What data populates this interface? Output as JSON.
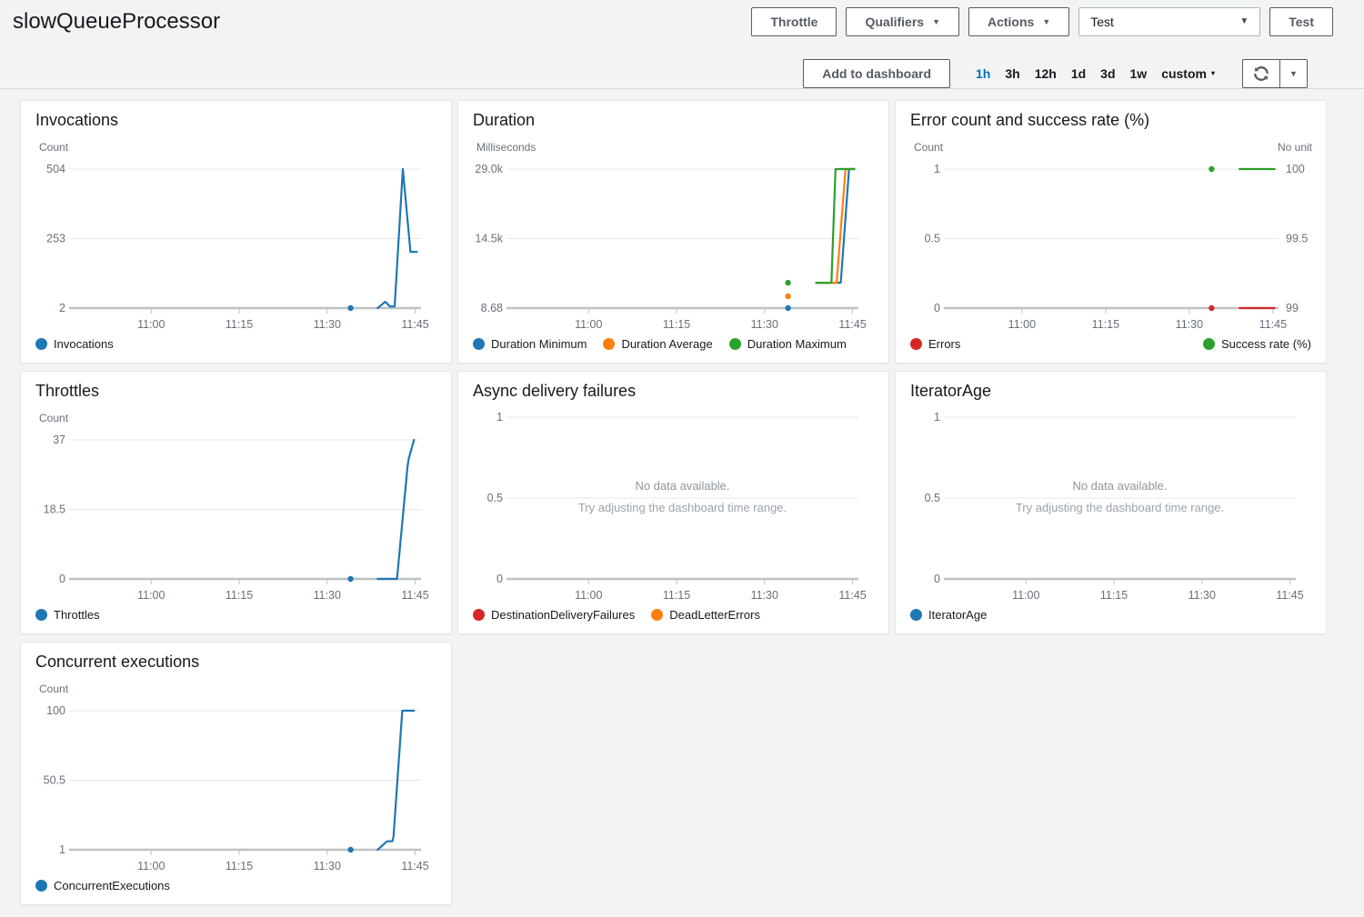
{
  "header": {
    "title": "slowQueueProcessor",
    "throttle_label": "Throttle",
    "qualifiers_label": "Qualifiers",
    "actions_label": "Actions",
    "test_select_value": "Test",
    "test_button_label": "Test"
  },
  "toolbar": {
    "add_to_dashboard": "Add to dashboard",
    "time_ranges": [
      "1h",
      "3h",
      "12h",
      "1d",
      "3d",
      "1w"
    ],
    "selected_range": "1h",
    "custom_label": "custom"
  },
  "colors": {
    "blue": "#1f77b4",
    "orange": "#ff7f0e",
    "green": "#2ca02c",
    "red": "#d62728",
    "accent_link": "#0073bb",
    "button_border": "#545b64",
    "axis_text": "#687078",
    "gridline": "#e9e9e9",
    "baseline": "#bdc1c4"
  },
  "x_axis": {
    "xlim_minutes": [
      646,
      706
    ],
    "tick_minutes": [
      660,
      675,
      690,
      705
    ],
    "tick_labels": [
      "11:00",
      "11:15",
      "11:30",
      "11:45"
    ]
  },
  "chart_data": [
    {
      "type": "line",
      "title": "Invocations",
      "unit_left": "Count",
      "ylim": [
        2,
        504
      ],
      "y_ticks_left": [
        "504",
        "253",
        "2"
      ],
      "x_ticks": [
        "11:00",
        "11:15",
        "11:30",
        "11:45"
      ],
      "legend": [
        {
          "label": "Invocations",
          "color": "#1f77b4"
        }
      ],
      "series": [
        {
          "name": "Invocations",
          "color": "#1f77b4",
          "axis": "left",
          "dot": [
            694,
            2
          ],
          "points": [
            [
              698.6,
              2
            ],
            [
              699.9,
              25
            ],
            [
              700.7,
              8
            ],
            [
              701.5,
              8
            ],
            [
              702.9,
              504
            ],
            [
              704.2,
              205
            ],
            [
              705.3,
              205
            ]
          ]
        }
      ]
    },
    {
      "type": "line",
      "title": "Duration",
      "unit_left": "Milliseconds",
      "ylim": [
        8.68,
        29000
      ],
      "y_ticks_left": [
        "29.0k",
        "14.5k",
        "8.68"
      ],
      "x_ticks": [
        "11:00",
        "11:15",
        "11:30",
        "11:45"
      ],
      "legend": [
        {
          "label": "Duration Minimum",
          "color": "#1f77b4"
        },
        {
          "label": "Duration Average",
          "color": "#ff7f0e"
        },
        {
          "label": "Duration Maximum",
          "color": "#2ca02c"
        }
      ],
      "series": [
        {
          "name": "Duration Minimum",
          "color": "#1f77b4",
          "axis": "left",
          "dot": [
            694,
            8.68
          ],
          "points": [
            [
              698.8,
              5300
            ],
            [
              703.0,
              5300
            ],
            [
              704.4,
              29000
            ],
            [
              705.3,
              29000
            ]
          ]
        },
        {
          "name": "Duration Average",
          "color": "#ff7f0e",
          "axis": "left",
          "dot": [
            694,
            2500
          ],
          "points": [
            [
              698.8,
              5300
            ],
            [
              702.3,
              5300
            ],
            [
              703.8,
              29000
            ],
            [
              705.3,
              29000
            ]
          ]
        },
        {
          "name": "Duration Maximum",
          "color": "#2ca02c",
          "axis": "left",
          "dot": [
            694,
            5300
          ],
          "points": [
            [
              698.8,
              5300
            ],
            [
              701.4,
              5300
            ],
            [
              702.1,
              29000
            ],
            [
              705.3,
              29000
            ]
          ]
        }
      ]
    },
    {
      "type": "line",
      "title": "Error count and success rate (%)",
      "unit_left": "Count",
      "unit_right": "No unit",
      "ylim": [
        0,
        1
      ],
      "ylim_right": [
        99,
        100
      ],
      "y_ticks_left": [
        "1",
        "0.5",
        "0"
      ],
      "y_ticks_right": [
        "100",
        "99.5",
        "99"
      ],
      "x_ticks": [
        "11:00",
        "11:15",
        "11:30",
        "11:45"
      ],
      "legend": [
        {
          "label": "Errors",
          "color": "#d62728"
        }
      ],
      "legend_right": [
        {
          "label": "Success rate (%)",
          "color": "#2ca02c"
        }
      ],
      "series": [
        {
          "name": "Errors",
          "color": "#d62728",
          "axis": "left",
          "dot": [
            694,
            0
          ],
          "points": [
            [
              699,
              0
            ],
            [
              705.3,
              0
            ]
          ]
        },
        {
          "name": "Success rate (%)",
          "color": "#2ca02c",
          "axis": "right",
          "dot": [
            694,
            100
          ],
          "points": [
            [
              699,
              100
            ],
            [
              705.3,
              100
            ]
          ]
        }
      ]
    },
    {
      "type": "line",
      "title": "Throttles",
      "unit_left": "Count",
      "ylim": [
        0,
        37
      ],
      "y_ticks_left": [
        "37",
        "18.5",
        "0"
      ],
      "x_ticks": [
        "11:00",
        "11:15",
        "11:30",
        "11:45"
      ],
      "legend": [
        {
          "label": "Throttles",
          "color": "#1f77b4"
        }
      ],
      "series": [
        {
          "name": "Throttles",
          "color": "#1f77b4",
          "axis": "left",
          "dot": [
            694,
            0
          ],
          "points": [
            [
              698.6,
              0
            ],
            [
              701.9,
              0
            ],
            [
              703.7,
              30
            ],
            [
              703.9,
              32
            ],
            [
              704.8,
              37
            ]
          ]
        }
      ]
    },
    {
      "type": "line",
      "title": "Async delivery failures",
      "ylim": [
        0,
        1
      ],
      "y_ticks_left": [
        "1",
        "0.5",
        "0"
      ],
      "x_ticks": [
        "11:00",
        "11:15",
        "11:30",
        "11:45"
      ],
      "no_data": true,
      "messages": [
        "No data available.",
        "Try adjusting the dashboard time range."
      ],
      "legend": [
        {
          "label": "DestinationDeliveryFailures",
          "color": "#d62728"
        },
        {
          "label": "DeadLetterErrors",
          "color": "#ff7f0e"
        }
      ],
      "series": []
    },
    {
      "type": "line",
      "title": "IteratorAge",
      "ylim": [
        0,
        1
      ],
      "y_ticks_left": [
        "1",
        "0.5",
        "0"
      ],
      "x_ticks": [
        "11:00",
        "11:15",
        "11:30",
        "11:45"
      ],
      "no_data": true,
      "messages": [
        "No data available.",
        "Try adjusting the dashboard time range."
      ],
      "legend": [
        {
          "label": "IteratorAge",
          "color": "#1f77b4"
        }
      ],
      "series": []
    },
    {
      "type": "line",
      "title": "Concurrent executions",
      "unit_left": "Count",
      "ylim": [
        1,
        100
      ],
      "y_ticks_left": [
        "100",
        "50.5",
        "1"
      ],
      "x_ticks": [
        "11:00",
        "11:15",
        "11:30",
        "11:45"
      ],
      "legend": [
        {
          "label": "ConcurrentExecutions",
          "color": "#1f77b4"
        }
      ],
      "series": [
        {
          "name": "ConcurrentExecutions",
          "color": "#1f77b4",
          "axis": "left",
          "dot": [
            694,
            1
          ],
          "points": [
            [
              698.6,
              1
            ],
            [
              700.2,
              7
            ],
            [
              701.1,
              7
            ],
            [
              701.3,
              10
            ],
            [
              702.8,
              100
            ],
            [
              704.8,
              100
            ]
          ]
        }
      ]
    }
  ]
}
